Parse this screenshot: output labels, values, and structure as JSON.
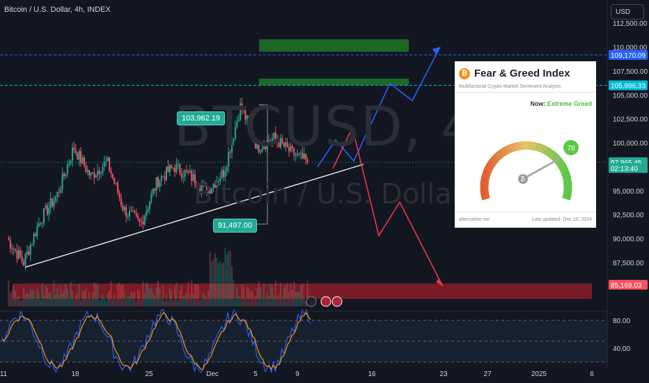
{
  "header": {
    "title": "Bitcoin / U.S. Dollar, 4h, INDEX"
  },
  "watermark": {
    "symbol": "BTCUSD, 4h",
    "name": "Bitcoin / U.S. Dollar"
  },
  "currency": "USD",
  "colors": {
    "up": "#22ab94",
    "down": "#f7525f",
    "blue": "#2962ff",
    "zone_green": "#1e6b2a",
    "zone_red": "#8b1f28"
  },
  "price_axis": {
    "ticks": [
      "112,500.00",
      "110,000.00",
      "107,500.00",
      "105,000.00",
      "102,500.00",
      "100,000.00",
      "95,000.00",
      "92,500.00",
      "90,000.00",
      "87,500.00"
    ],
    "tick_values": [
      112500,
      110000,
      107500,
      105000,
      102500,
      100000,
      95000,
      92500,
      90000,
      87500
    ],
    "labels": [
      {
        "text": "109,170.09",
        "value": 109170.09,
        "color": "#2962ff",
        "text_color": "#ffffff"
      },
      {
        "text": "105,996.33",
        "value": 105996.33,
        "color": "#00bcd4",
        "text_color": "#ffffff"
      },
      {
        "text": "97,965.45",
        "value": 97965.45,
        "color": "#22ab94",
        "text_color": "#ffffff"
      },
      {
        "text": "02:13:40",
        "value": 97360,
        "color": "#22ab94",
        "text_color": "#ffffff"
      },
      {
        "text": "85,169.03",
        "value": 85169.03,
        "color": "#f7525f",
        "text_color": "#ffffff"
      }
    ]
  },
  "callouts": {
    "high": "103,962.19",
    "low": "91,497.00"
  },
  "osc_axis": {
    "ticks": [
      "80.00",
      "40.00"
    ],
    "tick_values": [
      80,
      40
    ]
  },
  "time_axis": [
    "11",
    "18",
    "25",
    "Dec",
    "5",
    "9",
    "16",
    "23",
    "27",
    "2025",
    "6"
  ],
  "fear_greed": {
    "title": "Fear & Greed Index",
    "subtitle": "Multifactorial Crypto Market Sentiment Analysis",
    "now_label": "Now:",
    "now_value": "Extreme Greed",
    "value": "78",
    "source": "alternative.me",
    "updated": "Last updated: Dec 10, 2024"
  },
  "chart_data": {
    "type": "candlestick",
    "symbol": "BTCUSD",
    "interval": "4h",
    "y_range": [
      83500,
      113500
    ],
    "x_range": [
      "Nov 11",
      "Jan 6"
    ],
    "last_price": 97965.45,
    "marked_high": 103962.19,
    "marked_low": 91497.0,
    "levels": [
      109170.09,
      105996.33,
      85169.03
    ],
    "zones": [
      {
        "color": "green",
        "from": 109500,
        "to": 110800
      },
      {
        "color": "green",
        "from": 106000,
        "to": 106700
      },
      {
        "color": "red",
        "from": 83700,
        "to": 85300
      }
    ],
    "trendline": {
      "from": [
        "Nov 13",
        87000
      ],
      "to": [
        "Dec 15",
        97750
      ]
    },
    "projection_bull": [
      [
        97500,
        0
      ],
      [
        100300,
        1
      ],
      [
        98100,
        2
      ],
      [
        106200,
        3
      ],
      [
        104400,
        4
      ],
      [
        110000,
        5
      ]
    ],
    "projection_bear": [
      [
        97300,
        0
      ],
      [
        101600,
        1
      ],
      [
        90300,
        2
      ],
      [
        93800,
        3
      ],
      [
        85000,
        4
      ]
    ],
    "key_closes": [
      90000,
      87500,
      92000,
      94500,
      99500,
      96500,
      98000,
      93000,
      91500,
      96000,
      97500,
      96500,
      95000,
      97000,
      103900,
      99500,
      100500,
      99000,
      97965
    ],
    "oscillator": {
      "levels": [
        80,
        20
      ]
    }
  }
}
